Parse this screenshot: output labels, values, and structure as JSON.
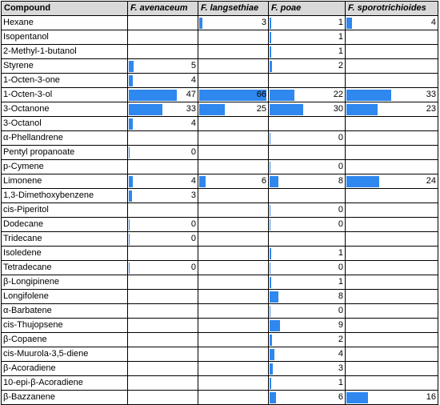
{
  "table": {
    "headers": [
      "Compound",
      "F. avenaceum",
      "F. langsethiae",
      "F. poae",
      "F. sporotrichioides"
    ],
    "max_value": 66,
    "bar_color": "#2f87f0",
    "rows": [
      {
        "compound": "Hexane",
        "values": [
          "",
          "3",
          "1",
          "4"
        ]
      },
      {
        "compound": "Isopentanol",
        "values": [
          "",
          "",
          "1",
          ""
        ]
      },
      {
        "compound": "2-Methyl-1-butanol",
        "values": [
          "",
          "",
          "1",
          ""
        ]
      },
      {
        "compound": "Styrene",
        "values": [
          "5",
          "",
          "2",
          ""
        ]
      },
      {
        "compound": "1-Octen-3-one",
        "values": [
          "4",
          "",
          "",
          ""
        ]
      },
      {
        "compound": "1-Octen-3-ol",
        "values": [
          "47",
          "66",
          "22",
          "33"
        ]
      },
      {
        "compound": "3-Octanone",
        "values": [
          "33",
          "25",
          "30",
          "23"
        ]
      },
      {
        "compound": "3-Octanol",
        "values": [
          "4",
          "",
          "",
          ""
        ]
      },
      {
        "compound": "α-Phellandrene",
        "values": [
          "",
          "",
          "0",
          ""
        ]
      },
      {
        "compound": "Pentyl propanoate",
        "values": [
          "0",
          "",
          "",
          ""
        ]
      },
      {
        "compound": "p-Cymene",
        "values": [
          "",
          "",
          "0",
          ""
        ]
      },
      {
        "compound": "Limonene",
        "values": [
          "4",
          "6",
          "8",
          "24"
        ]
      },
      {
        "compound": "1,3-Dimethoxybenzene",
        "values": [
          "3",
          "",
          "",
          ""
        ]
      },
      {
        "compound": "cis-Piperitol",
        "values": [
          "",
          "",
          "0",
          ""
        ]
      },
      {
        "compound": "Dodecane",
        "values": [
          "0",
          "",
          "0",
          ""
        ]
      },
      {
        "compound": "Tridecane",
        "values": [
          "0",
          "",
          "",
          ""
        ]
      },
      {
        "compound": "Isoledene",
        "values": [
          "",
          "",
          "1",
          ""
        ]
      },
      {
        "compound": "Tetradecane",
        "values": [
          "0",
          "",
          "0",
          ""
        ]
      },
      {
        "compound": "β-Longipinene",
        "values": [
          "",
          "",
          "1",
          ""
        ]
      },
      {
        "compound": "Longifolene",
        "values": [
          "",
          "",
          "8",
          ""
        ]
      },
      {
        "compound": "α-Barbatene",
        "values": [
          "",
          "",
          "0",
          ""
        ]
      },
      {
        "compound": "cis-Thujopsene",
        "values": [
          "",
          "",
          "9",
          ""
        ]
      },
      {
        "compound": "β-Copaene",
        "values": [
          "",
          "",
          "2",
          ""
        ]
      },
      {
        "compound": "cis-Muurola-3,5-diene",
        "values": [
          "",
          "",
          "4",
          ""
        ]
      },
      {
        "compound": "β-Acoradiene",
        "values": [
          "",
          "",
          "3",
          ""
        ]
      },
      {
        "compound": "10-epi-β-Acoradiene",
        "values": [
          "",
          "",
          "1",
          ""
        ]
      },
      {
        "compound": "β-Bazzanene",
        "values": [
          "",
          "",
          "6",
          "16"
        ]
      }
    ]
  }
}
